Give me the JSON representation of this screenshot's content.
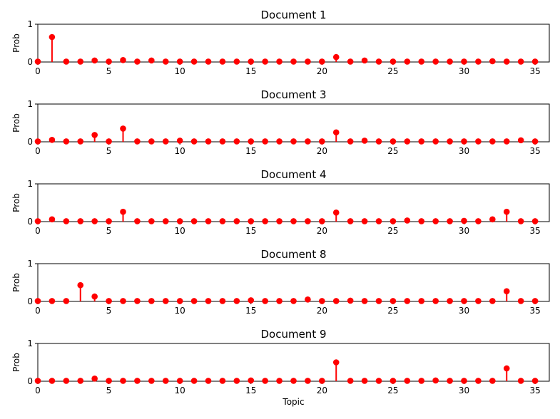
{
  "colors": {
    "marker": "#ff0000",
    "stem": "#ff0000",
    "axes": "#000000",
    "background": "#ffffff"
  },
  "chart_data": [
    {
      "type": "stem",
      "title": "Document 1",
      "xlabel": "",
      "ylabel": "Prob",
      "xlim": [
        0,
        36
      ],
      "ylim": [
        0,
        1
      ],
      "xticks": [
        "0",
        "5",
        "10",
        "15",
        "20",
        "25",
        "30",
        "35"
      ],
      "yticks": [
        "0",
        "1"
      ],
      "grid": false,
      "x": [
        0,
        1,
        2,
        3,
        4,
        5,
        6,
        7,
        8,
        9,
        10,
        11,
        12,
        13,
        14,
        15,
        16,
        17,
        18,
        19,
        20,
        21,
        22,
        23,
        24,
        25,
        26,
        27,
        28,
        29,
        30,
        31,
        32,
        33,
        34,
        35
      ],
      "values": [
        0.01,
        0.66,
        0.01,
        0.01,
        0.04,
        0.01,
        0.05,
        0.01,
        0.04,
        0.01,
        0.01,
        0.01,
        0.01,
        0.01,
        0.01,
        0.01,
        0.01,
        0.01,
        0.01,
        0.01,
        0.01,
        0.13,
        0.01,
        0.04,
        0.01,
        0.01,
        0.01,
        0.01,
        0.01,
        0.01,
        0.01,
        0.01,
        0.02,
        0.01,
        0.01,
        0.01
      ]
    },
    {
      "type": "stem",
      "title": "Document 3",
      "xlabel": "",
      "ylabel": "Prob",
      "xlim": [
        0,
        36
      ],
      "ylim": [
        0,
        1
      ],
      "xticks": [
        "0",
        "5",
        "10",
        "15",
        "20",
        "25",
        "30",
        "35"
      ],
      "yticks": [
        "0",
        "1"
      ],
      "grid": false,
      "x": [
        0,
        1,
        2,
        3,
        4,
        5,
        6,
        7,
        8,
        9,
        10,
        11,
        12,
        13,
        14,
        15,
        16,
        17,
        18,
        19,
        20,
        21,
        22,
        23,
        24,
        25,
        26,
        27,
        28,
        29,
        30,
        31,
        32,
        33,
        34,
        35
      ],
      "values": [
        0.01,
        0.05,
        0.01,
        0.01,
        0.18,
        0.01,
        0.35,
        0.01,
        0.01,
        0.01,
        0.03,
        0.01,
        0.01,
        0.01,
        0.01,
        0.01,
        0.01,
        0.01,
        0.01,
        0.01,
        0.01,
        0.25,
        0.01,
        0.03,
        0.01,
        0.01,
        0.01,
        0.01,
        0.01,
        0.01,
        0.01,
        0.01,
        0.01,
        0.01,
        0.04,
        0.01
      ]
    },
    {
      "type": "stem",
      "title": "Document 4",
      "xlabel": "",
      "ylabel": "Prob",
      "xlim": [
        0,
        36
      ],
      "ylim": [
        0,
        1
      ],
      "xticks": [
        "0",
        "5",
        "10",
        "15",
        "20",
        "25",
        "30",
        "35"
      ],
      "yticks": [
        "0",
        "1"
      ],
      "grid": false,
      "x": [
        0,
        1,
        2,
        3,
        4,
        5,
        6,
        7,
        8,
        9,
        10,
        11,
        12,
        13,
        14,
        15,
        16,
        17,
        18,
        19,
        20,
        21,
        22,
        23,
        24,
        25,
        26,
        27,
        28,
        29,
        30,
        31,
        32,
        33,
        34,
        35
      ],
      "values": [
        0.01,
        0.06,
        0.01,
        0.01,
        0.01,
        0.01,
        0.26,
        0.01,
        0.01,
        0.01,
        0.01,
        0.01,
        0.01,
        0.01,
        0.01,
        0.01,
        0.01,
        0.01,
        0.01,
        0.01,
        0.01,
        0.24,
        0.01,
        0.01,
        0.01,
        0.01,
        0.03,
        0.01,
        0.01,
        0.01,
        0.02,
        0.01,
        0.06,
        0.26,
        0.01,
        0.01
      ]
    },
    {
      "type": "stem",
      "title": "Document 8",
      "xlabel": "",
      "ylabel": "Prob",
      "xlim": [
        0,
        36
      ],
      "ylim": [
        0,
        1
      ],
      "xticks": [
        "0",
        "5",
        "10",
        "15",
        "20",
        "25",
        "30",
        "35"
      ],
      "yticks": [
        "0",
        "1"
      ],
      "grid": false,
      "x": [
        0,
        1,
        2,
        3,
        4,
        5,
        6,
        7,
        8,
        9,
        10,
        11,
        12,
        13,
        14,
        15,
        16,
        17,
        18,
        19,
        20,
        21,
        22,
        23,
        24,
        25,
        26,
        27,
        28,
        29,
        30,
        31,
        32,
        33,
        34,
        35
      ],
      "values": [
        0.01,
        0.01,
        0.01,
        0.43,
        0.13,
        0.01,
        0.01,
        0.01,
        0.01,
        0.01,
        0.01,
        0.01,
        0.01,
        0.01,
        0.01,
        0.03,
        0.01,
        0.01,
        0.01,
        0.05,
        0.01,
        0.01,
        0.02,
        0.01,
        0.01,
        0.01,
        0.01,
        0.01,
        0.01,
        0.01,
        0.01,
        0.01,
        0.01,
        0.27,
        0.01,
        0.01
      ]
    },
    {
      "type": "stem",
      "title": "Document 9",
      "xlabel": "Topic",
      "ylabel": "Prob",
      "xlim": [
        0,
        36
      ],
      "ylim": [
        0,
        1
      ],
      "xticks": [
        "0",
        "5",
        "10",
        "15",
        "20",
        "25",
        "30",
        "35"
      ],
      "yticks": [
        "0",
        "1"
      ],
      "grid": false,
      "x": [
        0,
        1,
        2,
        3,
        4,
        5,
        6,
        7,
        8,
        9,
        10,
        11,
        12,
        13,
        14,
        15,
        16,
        17,
        18,
        19,
        20,
        21,
        22,
        23,
        24,
        25,
        26,
        27,
        28,
        29,
        30,
        31,
        32,
        33,
        34,
        35
      ],
      "values": [
        0.01,
        0.01,
        0.01,
        0.01,
        0.07,
        0.01,
        0.01,
        0.01,
        0.01,
        0.01,
        0.01,
        0.01,
        0.01,
        0.01,
        0.01,
        0.02,
        0.01,
        0.01,
        0.01,
        0.01,
        0.01,
        0.5,
        0.01,
        0.01,
        0.01,
        0.01,
        0.01,
        0.01,
        0.02,
        0.01,
        0.01,
        0.01,
        0.01,
        0.34,
        0.01,
        0.01
      ]
    }
  ]
}
